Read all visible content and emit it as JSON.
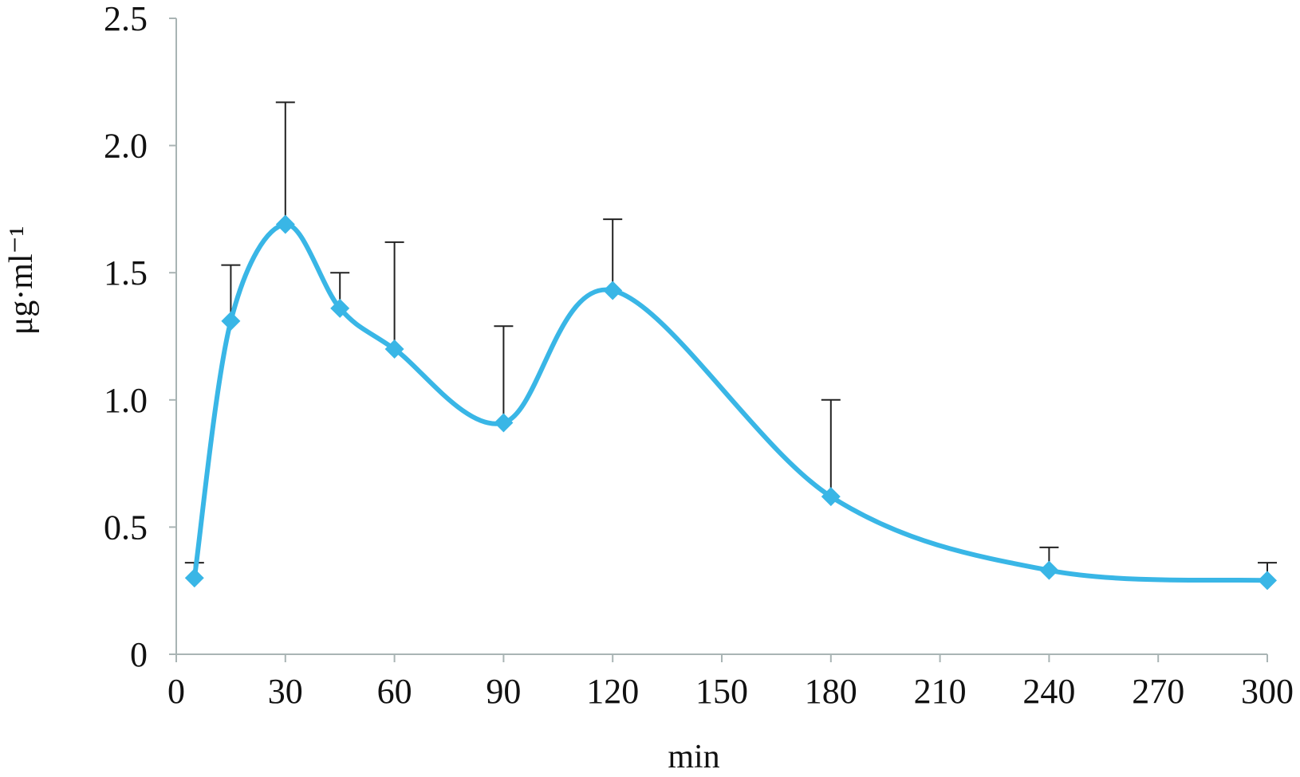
{
  "chart_data": {
    "type": "line",
    "xlabel": "min",
    "ylabel": "μg·ml⁻¹",
    "xlim": [
      0,
      300
    ],
    "ylim": [
      0,
      2.5
    ],
    "x_ticks": [
      0,
      30,
      60,
      90,
      120,
      150,
      180,
      210,
      240,
      270,
      300
    ],
    "x_tick_labels": [
      "0",
      "30",
      "60",
      "90",
      "120",
      "150",
      "180",
      "210",
      "240",
      "270",
      "300"
    ],
    "y_ticks": [
      0,
      0.5,
      1.0,
      1.5,
      2.0,
      2.5
    ],
    "y_tick_labels": [
      "0",
      "0.5",
      "1.0",
      "1.5",
      "2.0",
      "2.5"
    ],
    "grid": false,
    "legend": "none",
    "line_color": "#39b6e6",
    "error_bar_color": "#222222",
    "axis_color": "#a9b4b4",
    "smooth": true,
    "series": [
      {
        "x": [
          5,
          15,
          30,
          45,
          60,
          90,
          120,
          180,
          240,
          300
        ],
        "y": [
          0.3,
          1.31,
          1.69,
          1.36,
          1.2,
          0.91,
          1.43,
          0.62,
          0.33,
          0.29
        ],
        "error_upper": [
          0.06,
          0.22,
          0.48,
          0.14,
          0.42,
          0.38,
          0.28,
          0.38,
          0.09,
          0.07
        ]
      }
    ]
  }
}
